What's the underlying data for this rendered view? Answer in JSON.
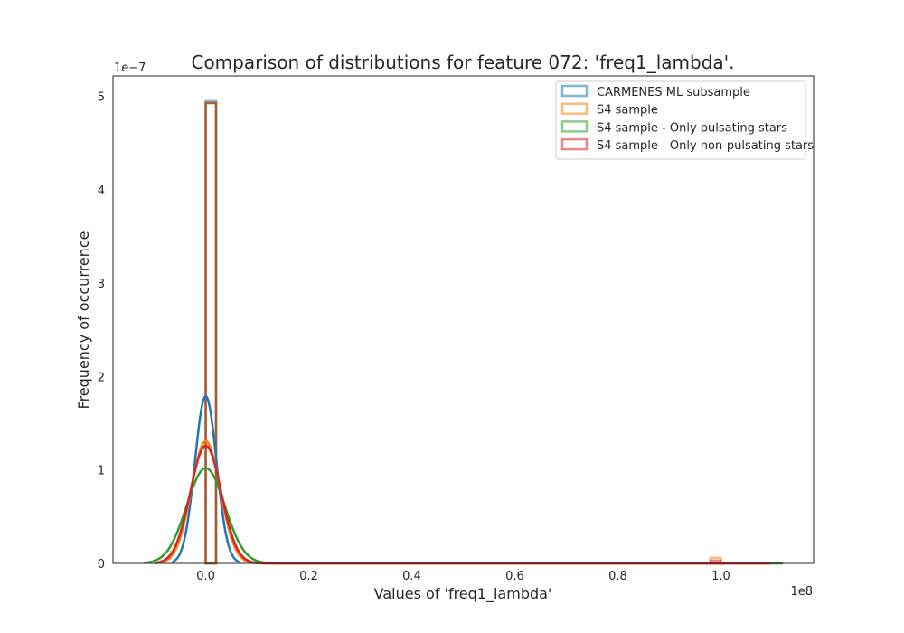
{
  "chart_data": {
    "type": "histogram+kde",
    "title": "Comparison of distributions for feature 072: 'freq1_lambda'.",
    "xlabel": "Values of 'freq1_lambda'",
    "ylabel": "Frequency of occurrence",
    "x_offset_label": "1e8",
    "y_offset_label": "1e−7",
    "x_unit": 100000000.0,
    "y_unit": 1e-07,
    "xlim": [
      -0.18,
      1.18
    ],
    "ylim": [
      0,
      5.22
    ],
    "x_ticks": [
      0.0,
      0.2,
      0.4,
      0.6,
      0.8,
      1.0
    ],
    "x_tick_labels": [
      "0.0",
      "0.2",
      "0.4",
      "0.6",
      "0.8",
      "1.0"
    ],
    "y_ticks": [
      0,
      1,
      2,
      3,
      4,
      5
    ],
    "y_tick_labels": [
      "0",
      "1",
      "2",
      "3",
      "4",
      "5"
    ],
    "grid": false,
    "legend_position": "top-right",
    "series": [
      {
        "name": "CARMENES ML subsample",
        "color": "#1f77b4",
        "histogram": [
          {
            "x0": 0.0,
            "x1": 0.02,
            "height": 4.95
          }
        ],
        "kde": {
          "mu": 0.0,
          "sigma": 0.021,
          "peak": 1.79,
          "x_range": [
            -0.065,
            0.065
          ]
        }
      },
      {
        "name": "S4 sample",
        "color": "#ff7f0e",
        "histogram": [
          {
            "x0": 0.0,
            "x1": 0.02,
            "height": 4.93
          },
          {
            "x0": 0.98,
            "x1": 1.0,
            "height": 0.06
          }
        ],
        "kde": {
          "mu": 0.0,
          "sigma": 0.028,
          "peak": 1.31,
          "x_range": [
            -0.1,
            1.1
          ]
        }
      },
      {
        "name": "S4 sample - Only pulsating stars",
        "color": "#2ca02c",
        "histogram": [
          {
            "x0": 0.0,
            "x1": 0.02,
            "height": 4.93
          }
        ],
        "kde": {
          "mu": 0.0,
          "sigma": 0.037,
          "peak": 1.02,
          "x_range": [
            -0.12,
            1.12
          ]
        }
      },
      {
        "name": "S4 sample - Only non-pulsating stars",
        "color": "#d62728",
        "histogram": [
          {
            "x0": 0.0,
            "x1": 0.02,
            "height": 4.93
          },
          {
            "x0": 0.98,
            "x1": 1.0,
            "height": 0.03
          }
        ],
        "kde": {
          "mu": 0.0,
          "sigma": 0.03,
          "peak": 1.26,
          "x_range": [
            -0.095,
            1.095
          ]
        }
      }
    ]
  }
}
